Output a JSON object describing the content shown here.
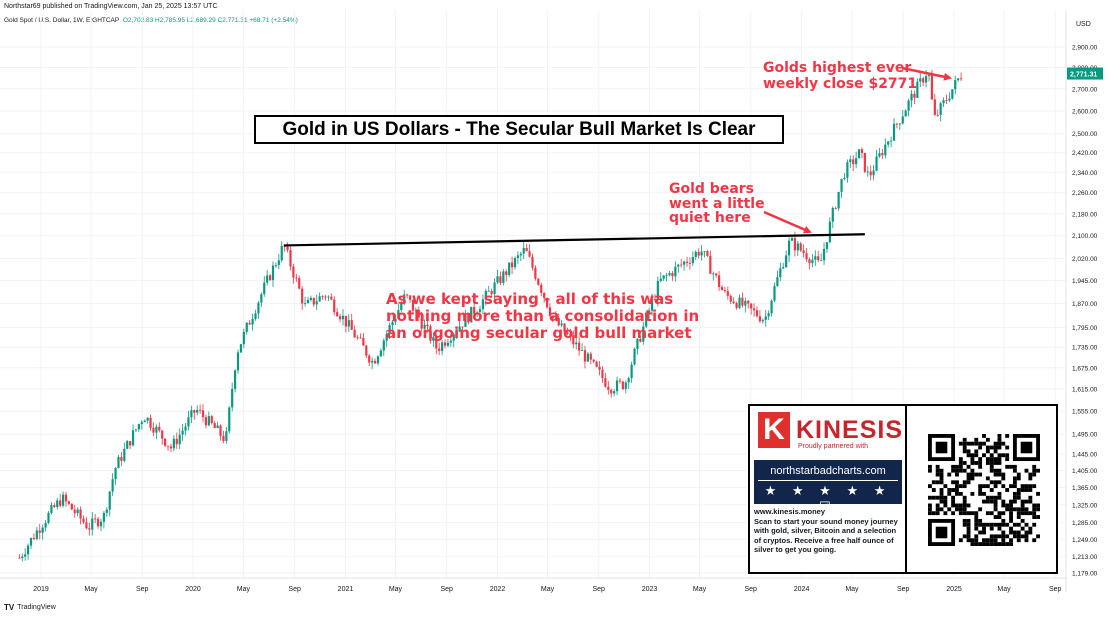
{
  "header": {
    "published": "Northstar69 published on TradingView.com, Jan 25, 2025 13:57 UTC",
    "symbol": "Gold Spot / U.S. Dollar, 1W, EIGHTCAP",
    "ohlc_o": "O2,702.83",
    "ohlc_h": "H2,785.95",
    "ohlc_l": "L2,689.29",
    "ohlc_c": "C2,771.31",
    "change": "+68.71 (+2.54%)"
  },
  "footer": {
    "brand": "TradingView"
  },
  "colors": {
    "up": "#089981",
    "down": "#f23645",
    "annotation": "#f23645",
    "price_tag": "#089981"
  },
  "chart_data": {
    "type": "candlestick",
    "title": "Gold in US Dollars - The Secular Bull Market Is Clear",
    "currency": "USD",
    "ylim": [
      1160,
      2960
    ],
    "y_ticks": [
      "2,900.00",
      "2,800.00",
      "2,700.00",
      "2,600.00",
      "2,500.00",
      "2,420.00",
      "2,340.00",
      "2,260.00",
      "2,180.00",
      "2,100.00",
      "2,020.00",
      "1,945.00",
      "1,870.00",
      "1,795.00",
      "1,735.00",
      "1,675.00",
      "1,615.00",
      "1,555.00",
      "1,495.00",
      "1,445.00",
      "1,405.00",
      "1,365.00",
      "1,325.00",
      "1,285.00",
      "1,249.00",
      "1,213.00",
      "1,179.00"
    ],
    "x_ticks": [
      "2019",
      "May",
      "Sep",
      "2020",
      "May",
      "Sep",
      "2021",
      "May",
      "Sep",
      "2022",
      "May",
      "Sep",
      "2023",
      "May",
      "Sep",
      "2024",
      "May",
      "Sep",
      "2025",
      "May",
      "Sep"
    ],
    "last_price": "2,771.31",
    "anchors": [
      [
        "2018-11-10",
        1210
      ],
      [
        "2019-01-05",
        1285
      ],
      [
        "2019-02-20",
        1340
      ],
      [
        "2019-04-25",
        1275
      ],
      [
        "2019-06-01",
        1300
      ],
      [
        "2019-06-28",
        1410
      ],
      [
        "2019-09-05",
        1545
      ],
      [
        "2019-11-10",
        1460
      ],
      [
        "2020-01-08",
        1560
      ],
      [
        "2020-03-20",
        1480
      ],
      [
        "2020-04-15",
        1720
      ],
      [
        "2020-08-06",
        2065
      ],
      [
        "2020-09-25",
        1860
      ],
      [
        "2020-11-15",
        1900
      ],
      [
        "2021-03-08",
        1690
      ],
      [
        "2021-05-25",
        1895
      ],
      [
        "2021-08-09",
        1730
      ],
      [
        "2021-11-15",
        1860
      ],
      [
        "2022-03-08",
        2050
      ],
      [
        "2022-05-15",
        1820
      ],
      [
        "2022-09-28",
        1620
      ],
      [
        "2022-11-03",
        1630
      ],
      [
        "2023-01-25",
        1940
      ],
      [
        "2023-05-04",
        2050
      ],
      [
        "2023-06-29",
        1900
      ],
      [
        "2023-10-05",
        1820
      ],
      [
        "2023-12-04",
        2080
      ],
      [
        "2024-02-14",
        1995
      ],
      [
        "2024-04-12",
        2340
      ],
      [
        "2024-05-20",
        2420
      ],
      [
        "2024-06-10",
        2320
      ],
      [
        "2024-10-31",
        2790
      ],
      [
        "2024-11-14",
        2560
      ],
      [
        "2025-01-20",
        2771
      ]
    ],
    "trend_line": {
      "start": [
        "2020-08-06",
        2065
      ],
      "end": [
        "2024-06-01",
        2105
      ]
    },
    "annotations": [
      {
        "id": "high",
        "text": "Golds highest ever weekly close $2771"
      },
      {
        "id": "bears",
        "text": "Gold bears went a little quiet here"
      },
      {
        "id": "consolidation",
        "text": "As we kept saying - all of this was nothing more than a consolidation in an ongoing secular gold bull market"
      }
    ]
  },
  "notes": {
    "high_line1": "Golds highest ever",
    "high_line2": "weekly close $2771",
    "bears_line1": "Gold bears",
    "bears_line2": "went a little",
    "bears_line3": "quiet here",
    "consol_line1": "As we kept saying - all of this was",
    "consol_line2": "nothing more than a consolidation in",
    "consol_line3": "an ongoing secular gold bull market"
  },
  "ad": {
    "logo_letter": "K",
    "brand": "KINESIS",
    "tagline": "Proudly partnered with",
    "partner_url": "northstarbadcharts.com",
    "stars": "★ ★ ★ ★ ★ ☑",
    "site": "www.kinesis.money",
    "text": "Scan to start your sound money journey with gold, silver, Bitcoin and a selection of cryptos. Receive a free half ounce of silver to get you going."
  }
}
